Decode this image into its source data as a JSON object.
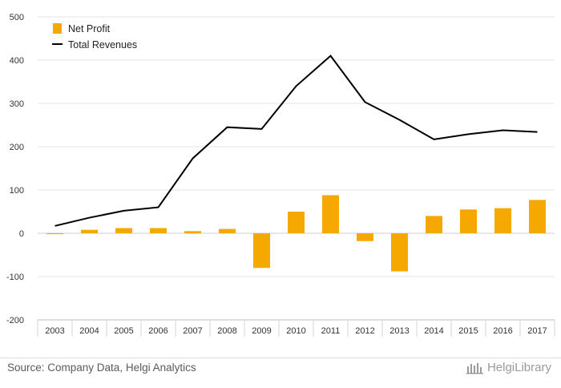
{
  "chart_data": {
    "type": "bar",
    "categories": [
      "2003",
      "2004",
      "2005",
      "2006",
      "2007",
      "2008",
      "2009",
      "2010",
      "2011",
      "2012",
      "2013",
      "2014",
      "2015",
      "2016",
      "2017"
    ],
    "series": [
      {
        "name": "Net Profit",
        "type": "bar",
        "color": "#f5a800",
        "values": [
          -2,
          8,
          12,
          12,
          5,
          10,
          -80,
          50,
          88,
          -18,
          -88,
          40,
          55,
          58,
          77
        ]
      },
      {
        "name": "Total Revenues",
        "type": "line",
        "color": "#000000",
        "values": [
          17,
          36,
          52,
          60,
          173,
          245,
          241,
          340,
          410,
          303,
          262,
          217,
          229,
          238,
          234
        ]
      }
    ],
    "yticks": [
      500,
      400,
      300,
      200,
      100,
      0,
      -100,
      -200
    ],
    "ylim": [
      -200,
      500
    ],
    "grid": true,
    "legend_position": "top-left"
  },
  "footer": {
    "source": "Source: Company Data, Helgi Analytics",
    "brand": "HelgiLibrary"
  }
}
